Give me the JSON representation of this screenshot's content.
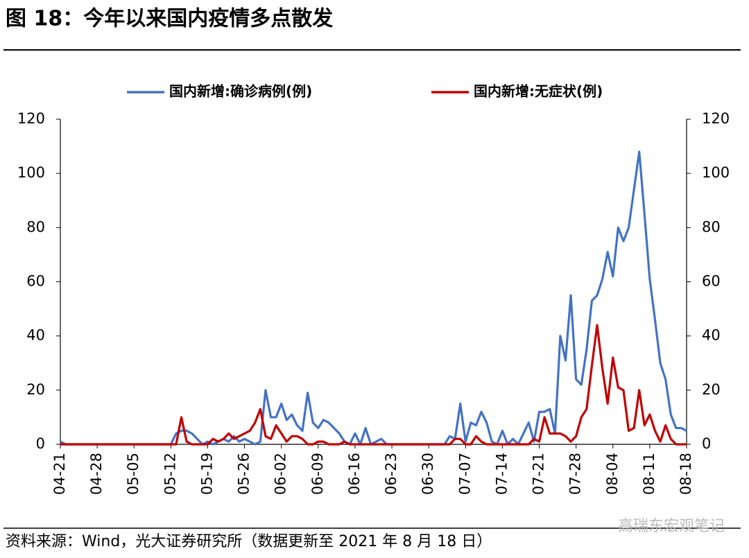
{
  "chart_data": {
    "type": "line",
    "title": "图 18：今年以来国内疫情多点散发",
    "source": "资料来源：Wind，光大证券研究所（数据更新至 2021 年 8 月 18 日）",
    "watermark": "高瑞东宏观笔记",
    "categories": [
      "04-21",
      null,
      null,
      null,
      null,
      null,
      null,
      "04-28",
      null,
      null,
      null,
      null,
      null,
      null,
      "05-05",
      null,
      null,
      null,
      null,
      null,
      null,
      "05-12",
      null,
      null,
      null,
      null,
      null,
      null,
      "05-19",
      null,
      null,
      null,
      null,
      null,
      null,
      "05-26",
      null,
      null,
      null,
      null,
      null,
      null,
      "06-02",
      null,
      null,
      null,
      null,
      null,
      null,
      "06-09",
      null,
      null,
      null,
      null,
      null,
      null,
      "06-16",
      null,
      null,
      null,
      null,
      null,
      null,
      "06-23",
      null,
      null,
      null,
      null,
      null,
      null,
      "06-30",
      null,
      null,
      null,
      null,
      null,
      null,
      "07-07",
      null,
      null,
      null,
      null,
      null,
      null,
      "07-14",
      null,
      null,
      null,
      null,
      null,
      null,
      "07-21",
      null,
      null,
      null,
      null,
      null,
      null,
      "07-28",
      null,
      null,
      null,
      null,
      null,
      null,
      "08-04",
      null,
      null,
      null,
      null,
      null,
      null,
      "08-11",
      null,
      null,
      null,
      null,
      null,
      null,
      "08-18"
    ],
    "series": [
      {
        "name": "国内新增:确诊病例(例)",
        "color": "#4472c4",
        "values": [
          1,
          0,
          0,
          0,
          0,
          0,
          0,
          0,
          0,
          0,
          0,
          0,
          0,
          0,
          0,
          0,
          0,
          0,
          0,
          0,
          0,
          0,
          4,
          5,
          5,
          4,
          2,
          0,
          1,
          0,
          1,
          2,
          1,
          3,
          1,
          2,
          1,
          0,
          1,
          20,
          10,
          10,
          15,
          9,
          11,
          7,
          5,
          19,
          8,
          6,
          9,
          8,
          6,
          4,
          1,
          0,
          4,
          0,
          6,
          0,
          1,
          2,
          0,
          0,
          0,
          0,
          0,
          0,
          0,
          0,
          0,
          0,
          0,
          0,
          3,
          2,
          15,
          1,
          8,
          7,
          12,
          8,
          1,
          0,
          5,
          0,
          2,
          0,
          4,
          8,
          1,
          12,
          12,
          13,
          4,
          40,
          31,
          55,
          24,
          22,
          35,
          53,
          55,
          61,
          71,
          62,
          80,
          75,
          80,
          94,
          108,
          85,
          61,
          46,
          30,
          24,
          11,
          6,
          6,
          5
        ]
      },
      {
        "name": "国内新增:无症状(例)",
        "color": "#c00000",
        "values": [
          0,
          0,
          0,
          0,
          0,
          0,
          0,
          0,
          0,
          0,
          0,
          0,
          0,
          0,
          0,
          0,
          0,
          0,
          0,
          0,
          0,
          0,
          0,
          10,
          1,
          0,
          0,
          0,
          0,
          2,
          1,
          2,
          4,
          2,
          3,
          4,
          5,
          8,
          13,
          3,
          2,
          7,
          4,
          1,
          3,
          3,
          2,
          0,
          0,
          1,
          1,
          0,
          0,
          0,
          1,
          0,
          0,
          0,
          0,
          0,
          0,
          0,
          0,
          0,
          0,
          0,
          0,
          0,
          0,
          0,
          0,
          0,
          0,
          0,
          0,
          2,
          2,
          0,
          0,
          3,
          1,
          0,
          0,
          0,
          0,
          0,
          0,
          0,
          0,
          0,
          2,
          1,
          10,
          4,
          4,
          4,
          3,
          1,
          3,
          10,
          13,
          29,
          44,
          28,
          15,
          32,
          21,
          20,
          5,
          6,
          20,
          7,
          11,
          5,
          1,
          7,
          2,
          0,
          0,
          0
        ]
      }
    ],
    "ylim": [
      0,
      120
    ],
    "yticks": [
      0,
      20,
      40,
      60,
      80,
      100,
      120
    ],
    "y2lim": [
      0,
      120
    ],
    "y2ticks": [
      0,
      20,
      40,
      60,
      80,
      100,
      120
    ],
    "legend": "top",
    "grid": false
  }
}
